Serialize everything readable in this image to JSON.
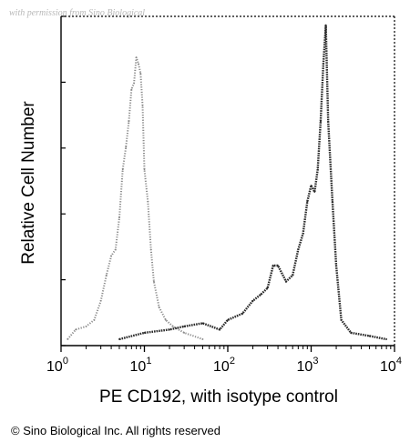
{
  "watermark": "with permission from Sino Biological",
  "copyright": "© Sino Biological Inc. All rights reserved",
  "chart_data": {
    "type": "histogram",
    "xlabel": "PE CD192, with isotype control",
    "ylabel": "Relative Cell Number",
    "xscale": "log",
    "xlim": [
      1,
      10000
    ],
    "x_ticks": [
      {
        "base": "10",
        "exp": "0",
        "value": 1
      },
      {
        "base": "10",
        "exp": "1",
        "value": 10
      },
      {
        "base": "10",
        "exp": "2",
        "value": 100
      },
      {
        "base": "10",
        "exp": "3",
        "value": 1000
      },
      {
        "base": "10",
        "exp": "4",
        "value": 10000
      }
    ],
    "ylim": [
      0,
      1
    ],
    "y_ticks_labeled": false,
    "series": [
      {
        "role": "isotype control",
        "style": "light dotted",
        "color": "#8a8a8a",
        "x": [
          1.2,
          1.5,
          2,
          2.5,
          3,
          3.5,
          4,
          4.5,
          5,
          5.5,
          6,
          6.5,
          7,
          7.5,
          8,
          8.5,
          9,
          9.5,
          10,
          11,
          12,
          13,
          15,
          18,
          22,
          30,
          50
        ],
        "y": [
          0.02,
          0.05,
          0.06,
          0.08,
          0.14,
          0.22,
          0.28,
          0.3,
          0.4,
          0.55,
          0.62,
          0.7,
          0.8,
          0.82,
          0.9,
          0.88,
          0.85,
          0.75,
          0.55,
          0.45,
          0.3,
          0.2,
          0.12,
          0.08,
          0.06,
          0.04,
          0.02
        ]
      },
      {
        "role": "PE CD192",
        "style": "dark dotted",
        "color": "#2a2a2a",
        "x": [
          5,
          10,
          20,
          30,
          50,
          80,
          100,
          150,
          200,
          250,
          300,
          350,
          400,
          500,
          600,
          700,
          800,
          900,
          1000,
          1100,
          1200,
          1300,
          1400,
          1500,
          1600,
          1800,
          2000,
          2300,
          3000,
          5000,
          8000
        ],
        "y": [
          0.02,
          0.04,
          0.05,
          0.06,
          0.07,
          0.05,
          0.08,
          0.1,
          0.14,
          0.16,
          0.18,
          0.25,
          0.25,
          0.2,
          0.22,
          0.3,
          0.35,
          0.45,
          0.5,
          0.48,
          0.55,
          0.7,
          0.88,
          1.0,
          0.7,
          0.45,
          0.25,
          0.08,
          0.04,
          0.03,
          0.02
        ]
      }
    ]
  }
}
